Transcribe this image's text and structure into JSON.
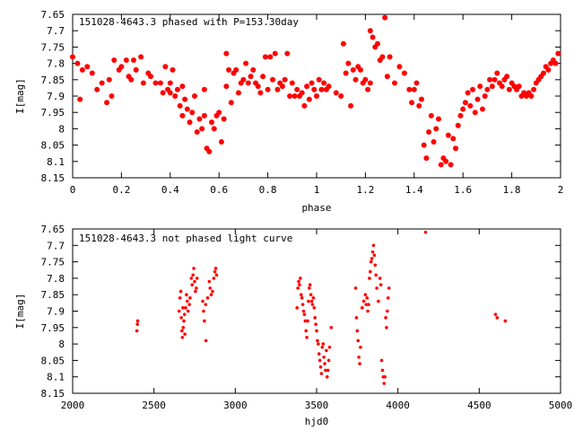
{
  "chart_data": [
    {
      "type": "scatter",
      "title": "151028-4643.3 phased with P=153.30day",
      "xlabel": "phase",
      "ylabel": "I[mag]",
      "xlim": [
        0,
        2
      ],
      "ylim": [
        7.65,
        8.15
      ],
      "y_inverted": true,
      "grid": false,
      "marker_color": "#ff0000",
      "x_ticks": [
        "0",
        "0.2",
        "0.4",
        "0.6",
        "0.8",
        "1",
        "1.2",
        "1.4",
        "1.6",
        "1.8",
        "2"
      ],
      "y_ticks": [
        "7.65",
        "7.7",
        "7.75",
        "7.8",
        "7.85",
        "7.9",
        "7.95",
        "8",
        "8.05",
        "8.1",
        "8.15"
      ],
      "points": [
        [
          0.0,
          7.78
        ],
        [
          0.02,
          7.8
        ],
        [
          0.03,
          7.91
        ],
        [
          0.04,
          7.82
        ],
        [
          0.06,
          7.81
        ],
        [
          0.08,
          7.83
        ],
        [
          0.1,
          7.88
        ],
        [
          0.12,
          7.86
        ],
        [
          0.14,
          7.92
        ],
        [
          0.15,
          7.85
        ],
        [
          0.16,
          7.9
        ],
        [
          0.17,
          7.79
        ],
        [
          0.19,
          7.82
        ],
        [
          0.2,
          7.81
        ],
        [
          0.22,
          7.79
        ],
        [
          0.23,
          7.84
        ],
        [
          0.24,
          7.85
        ],
        [
          0.25,
          7.79
        ],
        [
          0.26,
          7.82
        ],
        [
          0.28,
          7.78
        ],
        [
          0.29,
          7.86
        ],
        [
          0.31,
          7.83
        ],
        [
          0.32,
          7.84
        ],
        [
          0.34,
          7.86
        ],
        [
          0.36,
          7.86
        ],
        [
          0.37,
          7.89
        ],
        [
          0.38,
          7.81
        ],
        [
          0.39,
          7.88
        ],
        [
          0.4,
          7.89
        ],
        [
          0.4,
          7.86
        ],
        [
          0.41,
          7.82
        ],
        [
          0.42,
          7.9
        ],
        [
          0.43,
          7.88
        ],
        [
          0.44,
          7.93
        ],
        [
          0.45,
          7.96
        ],
        [
          0.45,
          7.87
        ],
        [
          0.46,
          7.91
        ],
        [
          0.47,
          7.94
        ],
        [
          0.48,
          7.98
        ],
        [
          0.49,
          7.95
        ],
        [
          0.5,
          7.9
        ],
        [
          0.51,
          8.01
        ],
        [
          0.52,
          7.97
        ],
        [
          0.53,
          8.0
        ],
        [
          0.54,
          7.96
        ],
        [
          0.54,
          7.88
        ],
        [
          0.55,
          8.06
        ],
        [
          0.56,
          8.07
        ],
        [
          0.57,
          7.98
        ],
        [
          0.58,
          8.0
        ],
        [
          0.59,
          7.96
        ],
        [
          0.6,
          7.95
        ],
        [
          0.61,
          8.04
        ],
        [
          0.62,
          7.97
        ],
        [
          0.63,
          7.87
        ],
        [
          0.63,
          7.77
        ],
        [
          0.64,
          7.82
        ],
        [
          0.65,
          7.92
        ],
        [
          0.66,
          7.83
        ],
        [
          0.67,
          7.82
        ],
        [
          0.68,
          7.89
        ],
        [
          0.69,
          7.86
        ],
        [
          0.7,
          7.85
        ],
        [
          0.71,
          7.8
        ],
        [
          0.72,
          7.86
        ],
        [
          0.73,
          7.84
        ],
        [
          0.74,
          7.82
        ],
        [
          0.75,
          7.86
        ],
        [
          0.76,
          7.87
        ],
        [
          0.77,
          7.89
        ],
        [
          0.78,
          7.84
        ],
        [
          0.79,
          7.78
        ],
        [
          0.8,
          7.88
        ],
        [
          0.81,
          7.78
        ],
        [
          0.82,
          7.85
        ],
        [
          0.83,
          7.77
        ],
        [
          0.84,
          7.88
        ],
        [
          0.85,
          7.86
        ],
        [
          0.86,
          7.87
        ],
        [
          0.87,
          7.85
        ],
        [
          0.88,
          7.77
        ],
        [
          0.89,
          7.9
        ],
        [
          0.9,
          7.86
        ],
        [
          0.91,
          7.9
        ],
        [
          0.92,
          7.88
        ],
        [
          0.93,
          7.9
        ],
        [
          0.94,
          7.89
        ],
        [
          0.95,
          7.93
        ],
        [
          0.96,
          7.87
        ],
        [
          0.97,
          7.91
        ],
        [
          0.98,
          7.86
        ],
        [
          0.99,
          7.88
        ],
        [
          1.0,
          7.9
        ],
        [
          1.01,
          7.85
        ],
        [
          1.02,
          7.88
        ],
        [
          1.03,
          7.86
        ],
        [
          1.04,
          7.88
        ],
        [
          1.05,
          7.87
        ],
        [
          1.08,
          7.89
        ],
        [
          1.1,
          7.9
        ],
        [
          1.11,
          7.74
        ],
        [
          1.12,
          7.83
        ],
        [
          1.13,
          7.8
        ],
        [
          1.14,
          7.93
        ],
        [
          1.15,
          7.82
        ],
        [
          1.16,
          7.85
        ],
        [
          1.17,
          7.81
        ],
        [
          1.18,
          7.82
        ],
        [
          1.19,
          7.86
        ],
        [
          1.2,
          7.85
        ],
        [
          1.21,
          7.88
        ],
        [
          1.22,
          7.86
        ],
        [
          1.22,
          7.7
        ],
        [
          1.23,
          7.72
        ],
        [
          1.24,
          7.75
        ],
        [
          1.25,
          7.74
        ],
        [
          1.26,
          7.79
        ],
        [
          1.27,
          7.78
        ],
        [
          1.28,
          7.66
        ],
        [
          1.29,
          7.84
        ],
        [
          1.3,
          7.78
        ],
        [
          1.32,
          7.86
        ],
        [
          1.34,
          7.81
        ],
        [
          1.36,
          7.83
        ],
        [
          1.38,
          7.88
        ],
        [
          1.39,
          7.92
        ],
        [
          1.4,
          7.88
        ],
        [
          1.41,
          7.86
        ],
        [
          1.42,
          7.93
        ],
        [
          1.43,
          7.91
        ],
        [
          1.44,
          8.05
        ],
        [
          1.45,
          8.09
        ],
        [
          1.46,
          8.01
        ],
        [
          1.47,
          7.96
        ],
        [
          1.48,
          8.04
        ],
        [
          1.49,
          8.0
        ],
        [
          1.5,
          7.97
        ],
        [
          1.51,
          8.11
        ],
        [
          1.52,
          8.09
        ],
        [
          1.53,
          8.1
        ],
        [
          1.54,
          8.02
        ],
        [
          1.55,
          8.11
        ],
        [
          1.56,
          8.03
        ],
        [
          1.57,
          8.06
        ],
        [
          1.58,
          7.99
        ],
        [
          1.59,
          7.96
        ],
        [
          1.6,
          7.94
        ],
        [
          1.61,
          7.92
        ],
        [
          1.62,
          7.89
        ],
        [
          1.63,
          7.93
        ],
        [
          1.64,
          7.88
        ],
        [
          1.65,
          7.95
        ],
        [
          1.66,
          7.91
        ],
        [
          1.67,
          7.87
        ],
        [
          1.68,
          7.94
        ],
        [
          1.69,
          7.9
        ],
        [
          1.7,
          7.88
        ],
        [
          1.71,
          7.85
        ],
        [
          1.72,
          7.87
        ],
        [
          1.73,
          7.85
        ],
        [
          1.74,
          7.83
        ],
        [
          1.75,
          7.86
        ],
        [
          1.76,
          7.87
        ],
        [
          1.77,
          7.85
        ],
        [
          1.78,
          7.84
        ],
        [
          1.79,
          7.88
        ],
        [
          1.8,
          7.86
        ],
        [
          1.81,
          7.87
        ],
        [
          1.82,
          7.88
        ],
        [
          1.83,
          7.87
        ],
        [
          1.84,
          7.9
        ],
        [
          1.85,
          7.89
        ],
        [
          1.86,
          7.9
        ],
        [
          1.87,
          7.89
        ],
        [
          1.88,
          7.9
        ],
        [
          1.89,
          7.88
        ],
        [
          1.9,
          7.86
        ],
        [
          1.91,
          7.85
        ],
        [
          1.92,
          7.84
        ],
        [
          1.93,
          7.83
        ],
        [
          1.94,
          7.81
        ],
        [
          1.95,
          7.82
        ],
        [
          1.96,
          7.8
        ],
        [
          1.97,
          7.79
        ],
        [
          1.98,
          7.8
        ],
        [
          1.99,
          7.77
        ]
      ]
    },
    {
      "type": "scatter",
      "title": "151028-4643.3 not phased light curve",
      "xlabel": "hjd0",
      "ylabel": "I[mag]",
      "xlim": [
        2000,
        5000
      ],
      "ylim": [
        7.65,
        8.15
      ],
      "y_inverted": true,
      "grid": false,
      "marker_color": "#ff0000",
      "x_ticks": [
        "2000",
        "2500",
        "3000",
        "3500",
        "4000",
        "4500",
        "5000"
      ],
      "y_ticks": [
        "7.65",
        "7.7",
        "7.75",
        "7.8",
        "7.85",
        "7.9",
        "7.95",
        "8",
        "8.05",
        "8.1",
        "8.15"
      ],
      "points": [
        [
          2395,
          7.96
        ],
        [
          2398,
          7.94
        ],
        [
          2400,
          7.93
        ],
        [
          2655,
          7.9
        ],
        [
          2660,
          7.86
        ],
        [
          2665,
          7.84
        ],
        [
          2668,
          7.92
        ],
        [
          2672,
          7.96
        ],
        [
          2675,
          7.98
        ],
        [
          2678,
          7.89
        ],
        [
          2680,
          7.95
        ],
        [
          2684,
          7.93
        ],
        [
          2688,
          7.91
        ],
        [
          2690,
          7.97
        ],
        [
          2695,
          7.89
        ],
        [
          2700,
          7.85
        ],
        [
          2705,
          7.87
        ],
        [
          2710,
          7.9
        ],
        [
          2718,
          7.88
        ],
        [
          2722,
          7.86
        ],
        [
          2730,
          7.8
        ],
        [
          2735,
          7.82
        ],
        [
          2740,
          7.79
        ],
        [
          2745,
          7.77
        ],
        [
          2750,
          7.81
        ],
        [
          2755,
          7.84
        ],
        [
          2760,
          7.83
        ],
        [
          2765,
          7.8
        ],
        [
          2800,
          7.87
        ],
        [
          2805,
          7.9
        ],
        [
          2810,
          7.93
        ],
        [
          2818,
          7.88
        ],
        [
          2820,
          7.99
        ],
        [
          2830,
          7.86
        ],
        [
          2840,
          7.81
        ],
        [
          2845,
          7.83
        ],
        [
          2852,
          7.85
        ],
        [
          2860,
          7.84
        ],
        [
          2868,
          7.8
        ],
        [
          2875,
          7.78
        ],
        [
          2880,
          7.77
        ],
        [
          2885,
          7.79
        ],
        [
          3380,
          7.89
        ],
        [
          3385,
          7.83
        ],
        [
          3390,
          7.81
        ],
        [
          3395,
          7.82
        ],
        [
          3400,
          7.8
        ],
        [
          3405,
          7.85
        ],
        [
          3410,
          7.86
        ],
        [
          3415,
          7.88
        ],
        [
          3420,
          7.9
        ],
        [
          3425,
          7.91
        ],
        [
          3430,
          7.93
        ],
        [
          3435,
          7.96
        ],
        [
          3440,
          7.98
        ],
        [
          3445,
          7.93
        ],
        [
          3450,
          7.87
        ],
        [
          3455,
          7.83
        ],
        [
          3460,
          7.82
        ],
        [
          3465,
          7.85
        ],
        [
          3470,
          7.87
        ],
        [
          3475,
          7.88
        ],
        [
          3480,
          7.86
        ],
        [
          3485,
          7.89
        ],
        [
          3490,
          7.92
        ],
        [
          3495,
          7.94
        ],
        [
          3500,
          7.96
        ],
        [
          3505,
          7.99
        ],
        [
          3510,
          8.0
        ],
        [
          3515,
          8.03
        ],
        [
          3520,
          8.05
        ],
        [
          3525,
          8.07
        ],
        [
          3530,
          8.09
        ],
        [
          3535,
          8.01
        ],
        [
          3540,
          8.0
        ],
        [
          3545,
          8.04
        ],
        [
          3550,
          8.06
        ],
        [
          3555,
          8.08
        ],
        [
          3560,
          8.02
        ],
        [
          3565,
          8.1
        ],
        [
          3570,
          8.08
        ],
        [
          3575,
          8.05
        ],
        [
          3580,
          8.01
        ],
        [
          3590,
          7.95
        ],
        [
          3740,
          7.83
        ],
        [
          3745,
          7.92
        ],
        [
          3750,
          7.96
        ],
        [
          3755,
          7.99
        ],
        [
          3760,
          8.04
        ],
        [
          3765,
          8.06
        ],
        [
          3770,
          8.01
        ],
        [
          3780,
          7.89
        ],
        [
          3790,
          7.87
        ],
        [
          3800,
          7.85
        ],
        [
          3805,
          7.88
        ],
        [
          3810,
          7.86
        ],
        [
          3815,
          7.9
        ],
        [
          3820,
          7.88
        ],
        [
          3825,
          7.8
        ],
        [
          3830,
          7.78
        ],
        [
          3835,
          7.75
        ],
        [
          3840,
          7.74
        ],
        [
          3845,
          7.72
        ],
        [
          3850,
          7.7
        ],
        [
          3855,
          7.73
        ],
        [
          3860,
          7.76
        ],
        [
          3865,
          7.79
        ],
        [
          3870,
          7.83
        ],
        [
          3880,
          7.87
        ],
        [
          3890,
          7.8
        ],
        [
          3895,
          7.82
        ],
        [
          3900,
          8.05
        ],
        [
          3905,
          8.08
        ],
        [
          3910,
          8.1
        ],
        [
          3915,
          8.12
        ],
        [
          3920,
          8.1
        ],
        [
          3925,
          7.92
        ],
        [
          3930,
          7.95
        ],
        [
          3935,
          7.9
        ],
        [
          3940,
          7.86
        ],
        [
          3945,
          7.83
        ],
        [
          4170,
          7.66
        ],
        [
          4600,
          7.91
        ],
        [
          4610,
          7.92
        ],
        [
          4660,
          7.93
        ]
      ]
    }
  ]
}
